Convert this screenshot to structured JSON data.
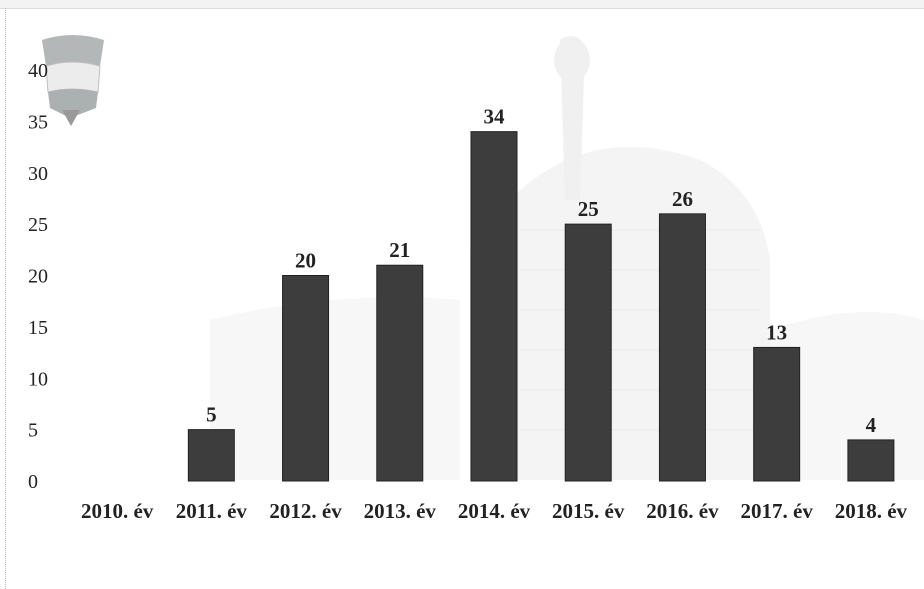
{
  "chart_data": {
    "type": "bar",
    "title": "",
    "xlabel": "",
    "ylabel": "",
    "categories": [
      "2010. év",
      "2011. év",
      "2012. év",
      "2013. év",
      "2014. év",
      "2015. év",
      "2016. év",
      "2017. év",
      "2018. év"
    ],
    "values": [
      0,
      5,
      20,
      21,
      34,
      25,
      26,
      13,
      4
    ],
    "data_labels": [
      "",
      "5",
      "20",
      "21",
      "34",
      "25",
      "26",
      "13",
      "4"
    ],
    "ylim": [
      0,
      40
    ],
    "yticks": [
      0,
      5,
      10,
      15,
      20,
      25,
      30,
      35,
      40
    ],
    "grid": false,
    "legend": "none",
    "colors": {
      "bar": "#3d3d3d",
      "text": "#222222",
      "watermark": "#e9e9e9"
    }
  },
  "watermark": {
    "badge_icon": "police-badge-icon",
    "background_icon": "building-watermark-icon"
  }
}
